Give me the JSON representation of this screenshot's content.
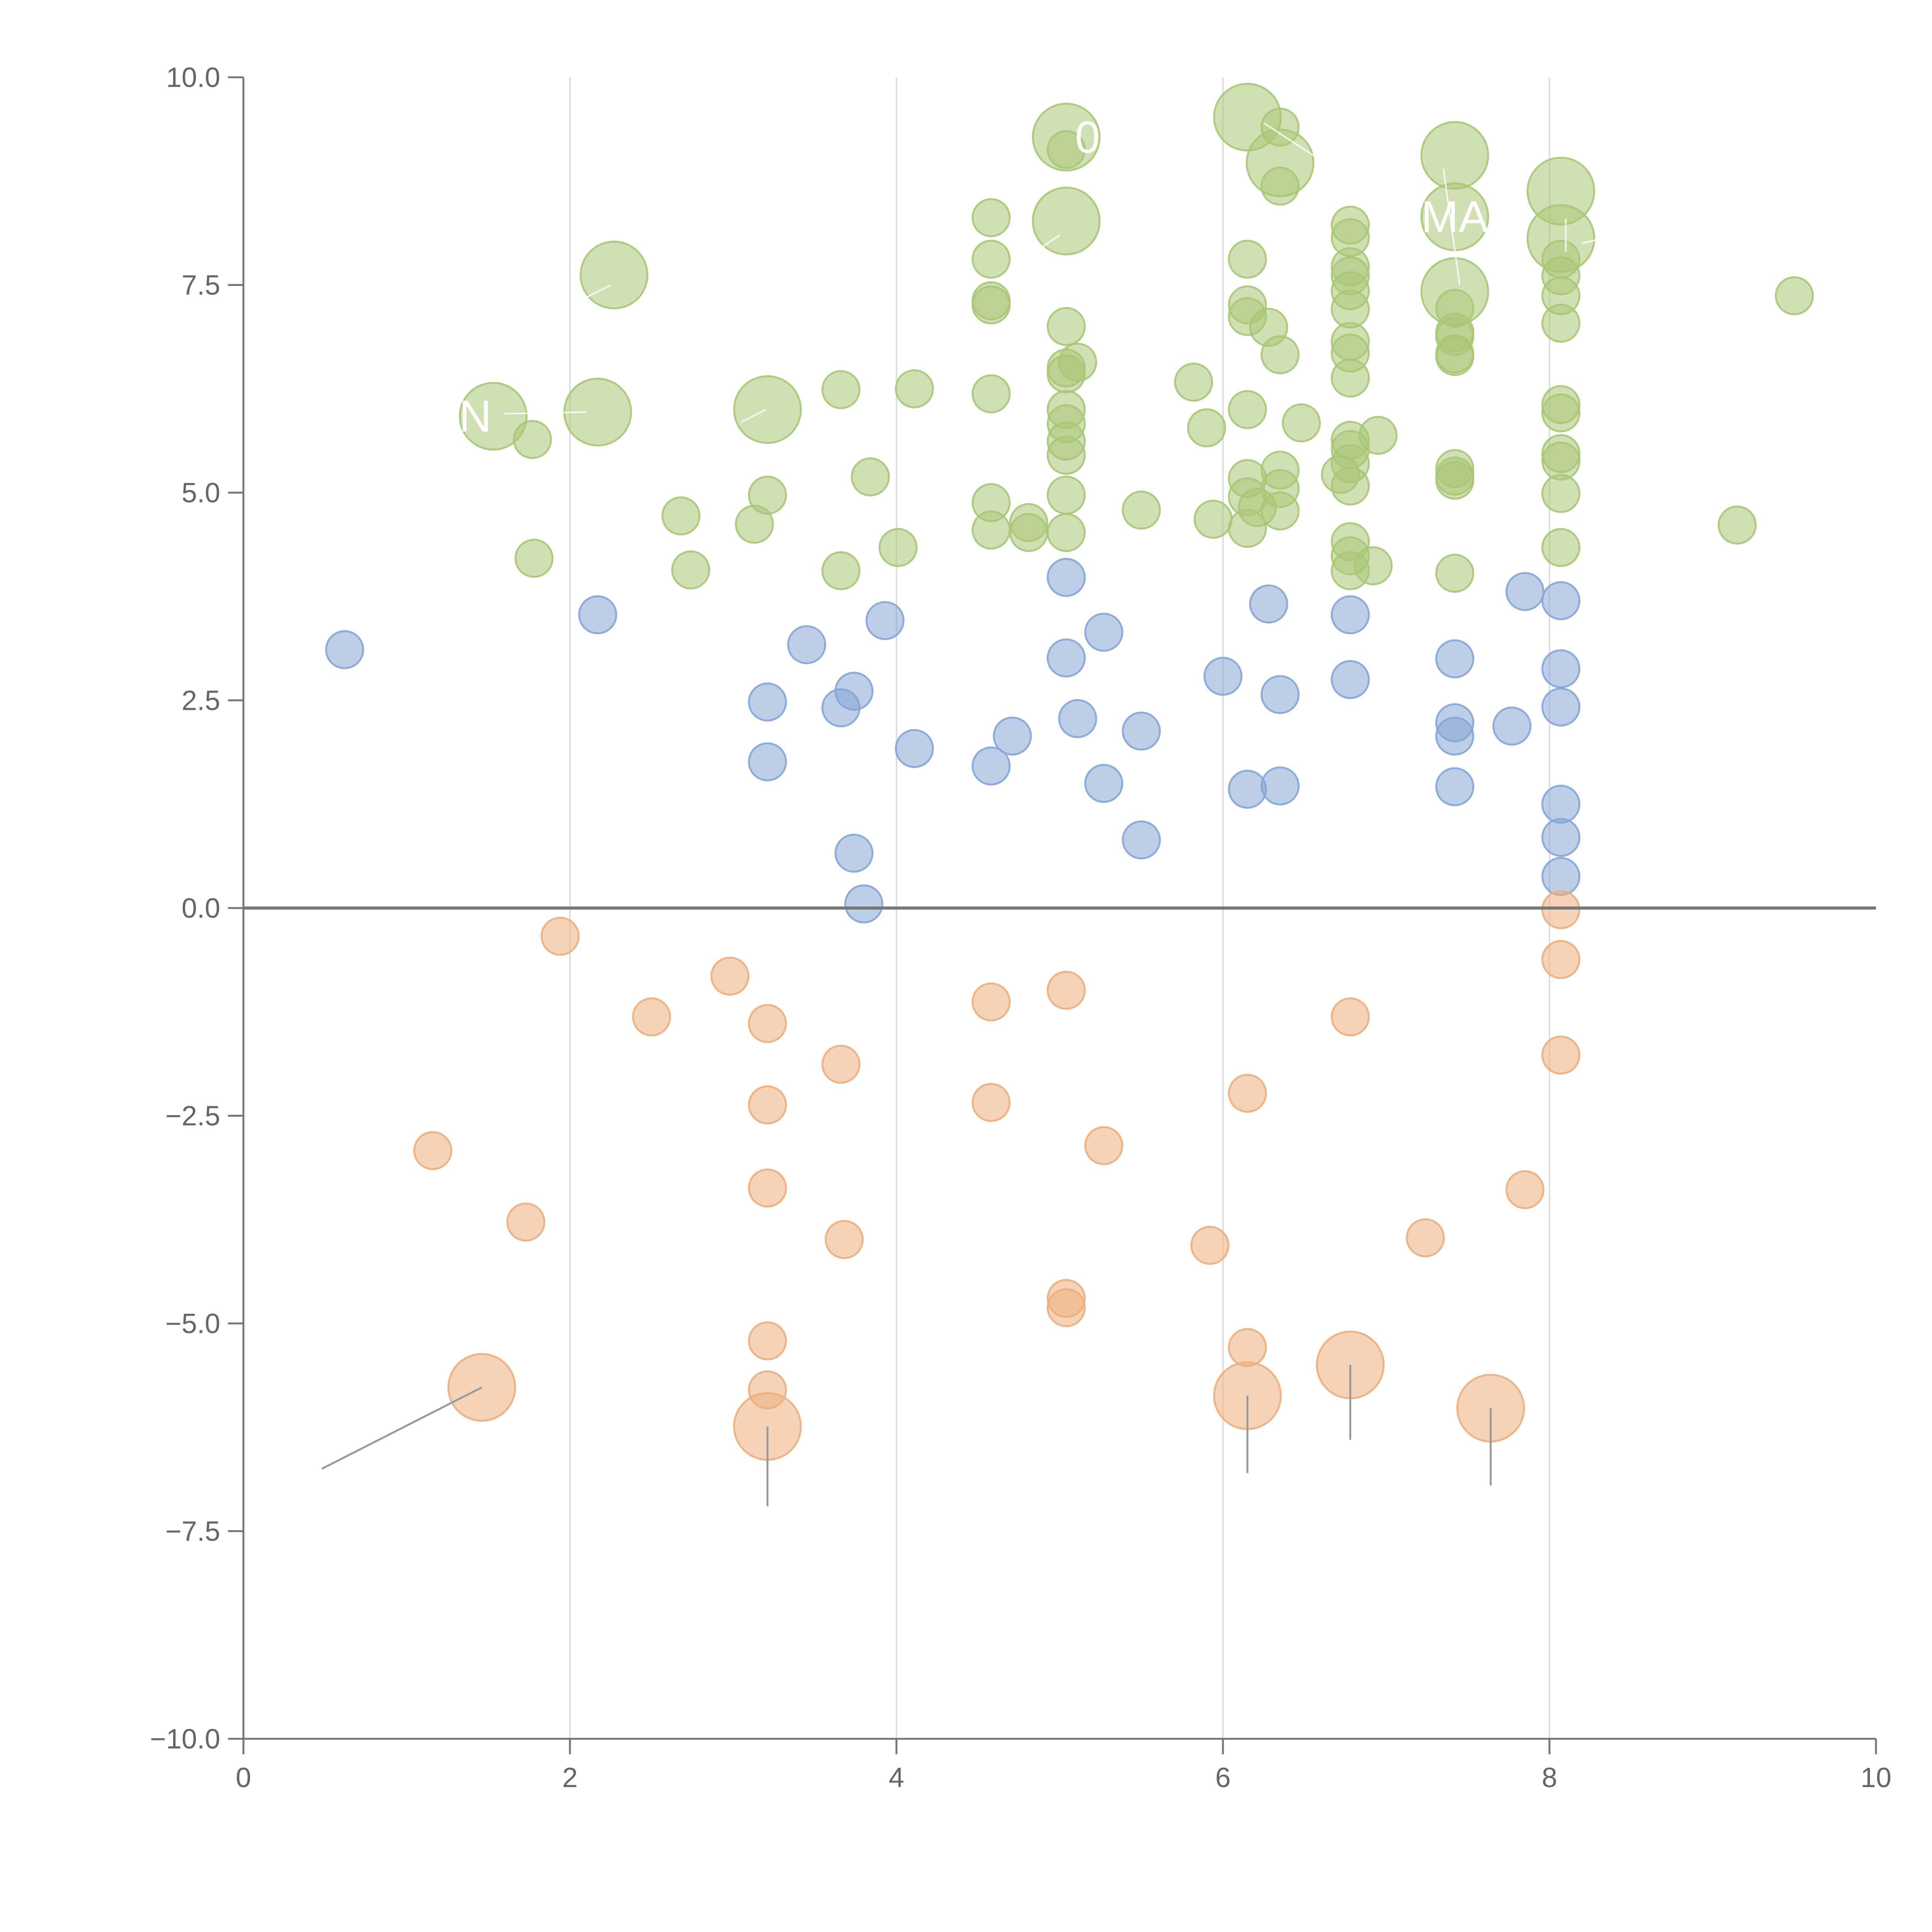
{
  "chart_data": {
    "type": "scatter",
    "title": "",
    "xlabel": "",
    "ylabel": "",
    "xlim": [
      0,
      10
    ],
    "ylim": [
      -10,
      10
    ],
    "x_ticks": [
      "0",
      "2",
      "4",
      "6",
      "8",
      "10"
    ],
    "y_ticks": [
      "10.0",
      "7.5",
      "5.0",
      "2.5",
      "0.0",
      "−2.5",
      "−5.0",
      "−7.5",
      "−10.0"
    ],
    "grid": "vertical lines at x ticks",
    "zero_line": true,
    "series": [
      {
        "color": "#a9c777",
        "points": [
          [
            1.53,
            5.92,
            1.8
          ],
          [
            1.77,
            5.64,
            1
          ],
          [
            2.17,
            5.97,
            1.8
          ],
          [
            2.27,
            7.62,
            1.8
          ],
          [
            1.78,
            4.21,
            1
          ],
          [
            2.68,
            4.72,
            1
          ],
          [
            2.74,
            4.07,
            1
          ],
          [
            3.13,
            4.62,
            1
          ],
          [
            3.21,
            4.97,
            1
          ],
          [
            3.21,
            6.0,
            1.8
          ],
          [
            3.66,
            6.24,
            1
          ],
          [
            3.66,
            4.06,
            1
          ],
          [
            3.84,
            5.19,
            1
          ],
          [
            4.01,
            4.34,
            1
          ],
          [
            4.11,
            6.25,
            1
          ],
          [
            4.58,
            8.31,
            1
          ],
          [
            4.58,
            7.81,
            1
          ],
          [
            4.58,
            7.31,
            1
          ],
          [
            4.58,
            7.26,
            1
          ],
          [
            4.58,
            6.19,
            1
          ],
          [
            4.58,
            4.88,
            1
          ],
          [
            4.58,
            4.55,
            1
          ],
          [
            4.81,
            4.64,
            1
          ],
          [
            4.81,
            4.52,
            1
          ],
          [
            5.04,
            9.28,
            1.8
          ],
          [
            5.04,
            9.13,
            1
          ],
          [
            5.04,
            8.27,
            1.8
          ],
          [
            5.04,
            7.0,
            1
          ],
          [
            5.04,
            6.5,
            1
          ],
          [
            5.04,
            6.43,
            1
          ],
          [
            5.04,
            6.0,
            1
          ],
          [
            5.04,
            5.83,
            1
          ],
          [
            5.04,
            5.62,
            1
          ],
          [
            5.04,
            5.45,
            1
          ],
          [
            5.04,
            4.97,
            1
          ],
          [
            5.04,
            4.52,
            1
          ],
          [
            5.11,
            6.57,
            1
          ],
          [
            5.5,
            4.79,
            1
          ],
          [
            5.82,
            6.33,
            1
          ],
          [
            5.9,
            5.78,
            1
          ],
          [
            5.94,
            4.68,
            1
          ],
          [
            6.15,
            9.52,
            1.8
          ],
          [
            6.15,
            7.81,
            1
          ],
          [
            6.15,
            7.26,
            1
          ],
          [
            6.15,
            7.12,
            1
          ],
          [
            6.15,
            6.0,
            1
          ],
          [
            6.15,
            5.17,
            1
          ],
          [
            6.15,
            4.95,
            1
          ],
          [
            6.15,
            4.57,
            1
          ],
          [
            6.21,
            4.82,
            1
          ],
          [
            6.28,
            6.99,
            1
          ],
          [
            6.35,
            9.4,
            1
          ],
          [
            6.35,
            8.97,
            1.8
          ],
          [
            6.35,
            8.69,
            1
          ],
          [
            6.35,
            6.66,
            1
          ],
          [
            6.35,
            5.27,
            1
          ],
          [
            6.35,
            5.05,
            1
          ],
          [
            6.35,
            4.78,
            1
          ],
          [
            6.48,
            5.84,
            1
          ],
          [
            6.78,
            8.22,
            1
          ],
          [
            6.78,
            8.07,
            1
          ],
          [
            6.78,
            7.72,
            1
          ],
          [
            6.78,
            7.61,
            1
          ],
          [
            6.78,
            7.43,
            1
          ],
          [
            6.78,
            7.21,
            1
          ],
          [
            6.78,
            6.82,
            1
          ],
          [
            6.78,
            6.68,
            1
          ],
          [
            6.78,
            6.38,
            1
          ],
          [
            6.78,
            5.63,
            1
          ],
          [
            6.78,
            5.52,
            1
          ],
          [
            6.78,
            5.35,
            1
          ],
          [
            6.78,
            5.08,
            1
          ],
          [
            6.78,
            4.41,
            1
          ],
          [
            6.78,
            4.24,
            1
          ],
          [
            6.78,
            4.06,
            1
          ],
          [
            6.72,
            5.22,
            1
          ],
          [
            6.95,
            5.69,
            1
          ],
          [
            6.92,
            4.12,
            1
          ],
          [
            7.42,
            9.06,
            1.8
          ],
          [
            7.42,
            8.32,
            1.8
          ],
          [
            7.42,
            7.42,
            1.8
          ],
          [
            7.42,
            7.22,
            1
          ],
          [
            7.42,
            6.93,
            1
          ],
          [
            7.42,
            6.88,
            1
          ],
          [
            7.42,
            6.67,
            1
          ],
          [
            7.42,
            6.64,
            1
          ],
          [
            7.42,
            5.29,
            1
          ],
          [
            7.42,
            5.2,
            1
          ],
          [
            7.42,
            5.15,
            1
          ],
          [
            7.42,
            4.03,
            1
          ],
          [
            8.07,
            8.63,
            1.8
          ],
          [
            8.07,
            8.06,
            1.8
          ],
          [
            8.07,
            7.81,
            1
          ],
          [
            8.07,
            7.61,
            1
          ],
          [
            8.07,
            7.37,
            1
          ],
          [
            8.07,
            7.04,
            1
          ],
          [
            8.07,
            6.06,
            1
          ],
          [
            8.07,
            5.96,
            1
          ],
          [
            8.07,
            5.47,
            1
          ],
          [
            8.07,
            5.38,
            1
          ],
          [
            8.07,
            4.99,
            1
          ],
          [
            8.07,
            4.34,
            1
          ],
          [
            9.15,
            4.61,
            1
          ],
          [
            9.5,
            7.37,
            1
          ]
        ]
      },
      {
        "color": "#86a5d6",
        "points": [
          [
            0.62,
            3.11,
            1
          ],
          [
            2.17,
            3.53,
            1
          ],
          [
            3.21,
            2.48,
            1
          ],
          [
            3.21,
            1.76,
            1
          ],
          [
            3.45,
            3.17,
            1
          ],
          [
            3.66,
            2.41,
            1
          ],
          [
            3.74,
            2.61,
            1
          ],
          [
            3.74,
            0.66,
            1
          ],
          [
            3.8,
            0.05,
            1
          ],
          [
            3.93,
            3.46,
            1
          ],
          [
            4.11,
            1.92,
            1
          ],
          [
            4.58,
            1.71,
            1
          ],
          [
            4.71,
            2.07,
            1
          ],
          [
            5.04,
            3.98,
            1
          ],
          [
            5.04,
            3.01,
            1
          ],
          [
            5.11,
            2.28,
            1
          ],
          [
            5.27,
            3.32,
            1
          ],
          [
            5.27,
            1.5,
            1
          ],
          [
            5.5,
            2.13,
            1
          ],
          [
            5.5,
            0.82,
            1
          ],
          [
            6.0,
            2.79,
            1
          ],
          [
            6.15,
            1.43,
            1
          ],
          [
            6.28,
            3.66,
            1
          ],
          [
            6.35,
            2.57,
            1
          ],
          [
            6.35,
            1.47,
            1
          ],
          [
            6.78,
            3.53,
            1
          ],
          [
            6.78,
            2.75,
            1
          ],
          [
            7.42,
            3.0,
            1
          ],
          [
            7.42,
            2.23,
            1
          ],
          [
            7.42,
            2.07,
            1
          ],
          [
            7.42,
            1.46,
            1
          ],
          [
            7.77,
            2.19,
            1
          ],
          [
            7.85,
            3.81,
            1
          ],
          [
            8.07,
            3.7,
            1
          ],
          [
            8.07,
            2.88,
            1
          ],
          [
            8.07,
            2.42,
            1
          ],
          [
            8.07,
            1.25,
            1
          ],
          [
            8.07,
            0.85,
            1
          ],
          [
            8.07,
            0.38,
            1
          ]
        ]
      },
      {
        "color": "#ecae7e",
        "points": [
          [
            1.16,
            -2.92,
            1
          ],
          [
            1.73,
            -3.78,
            1
          ],
          [
            1.46,
            -5.77,
            1.8
          ],
          [
            1.94,
            -0.34,
            1
          ],
          [
            2.5,
            -1.31,
            1
          ],
          [
            2.98,
            -0.82,
            1
          ],
          [
            3.21,
            -1.39,
            1
          ],
          [
            3.21,
            -2.37,
            1
          ],
          [
            3.21,
            -3.37,
            1
          ],
          [
            3.21,
            -5.21,
            1
          ],
          [
            3.21,
            -5.8,
            1
          ],
          [
            3.21,
            -6.24,
            1.8
          ],
          [
            3.66,
            -1.88,
            1
          ],
          [
            3.68,
            -3.99,
            1
          ],
          [
            4.58,
            -1.13,
            1
          ],
          [
            4.58,
            -2.34,
            1
          ],
          [
            5.04,
            -0.99,
            1
          ],
          [
            5.04,
            -4.7,
            1
          ],
          [
            5.04,
            -4.81,
            1
          ],
          [
            5.27,
            -2.86,
            1
          ],
          [
            5.92,
            -4.06,
            1
          ],
          [
            6.15,
            -2.23,
            1
          ],
          [
            6.15,
            -5.29,
            1
          ],
          [
            6.15,
            -5.87,
            1.8
          ],
          [
            6.78,
            -1.31,
            1
          ],
          [
            6.78,
            -5.5,
            1.8
          ],
          [
            7.24,
            -3.97,
            1
          ],
          [
            7.64,
            -6.02,
            1.8
          ],
          [
            7.85,
            -3.39,
            1
          ],
          [
            8.07,
            -0.02,
            1
          ],
          [
            8.07,
            -0.62,
            1
          ],
          [
            8.07,
            -1.77,
            1
          ]
        ]
      }
    ],
    "point_labels": [
      {
        "text": "N",
        "x": 1.42,
        "y": 5.92
      },
      {
        "text": "0",
        "x": 5.17,
        "y": 9.28
      },
      {
        "text": "MA",
        "x": 7.42,
        "y": 8.32
      }
    ]
  }
}
